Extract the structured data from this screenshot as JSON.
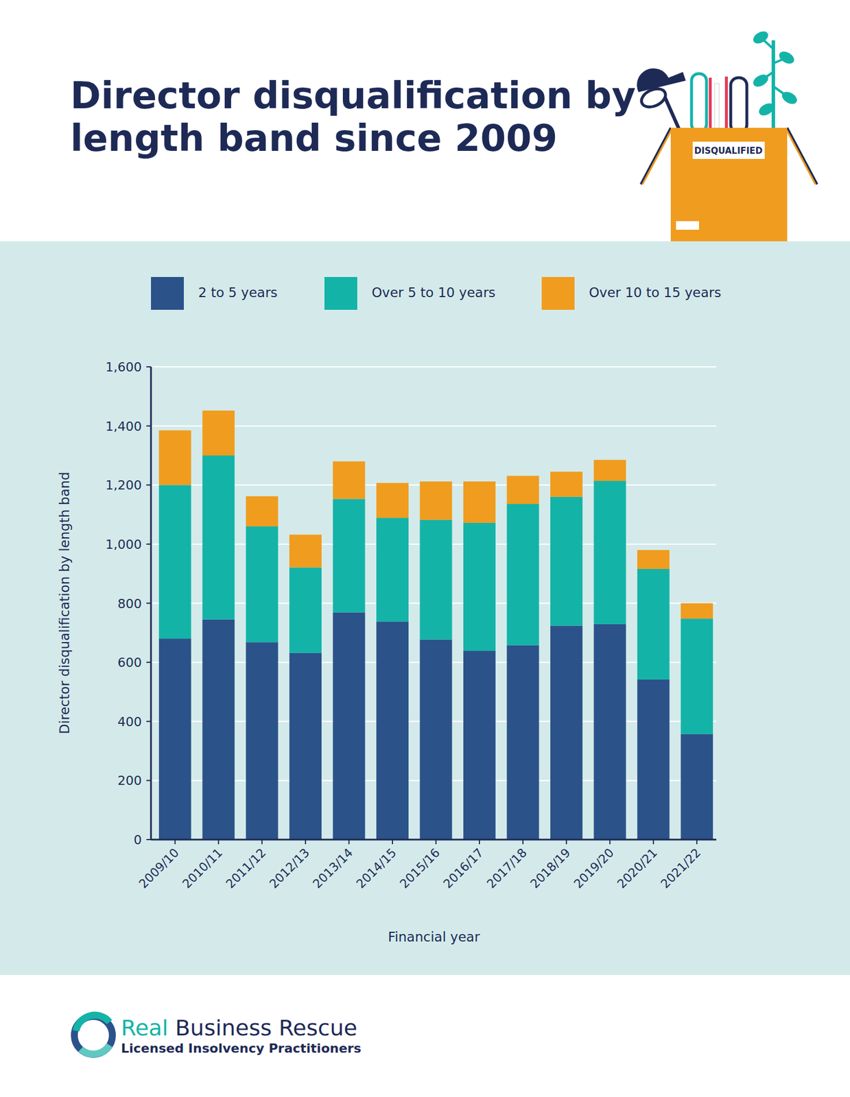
{
  "chart_data": {
    "type": "bar",
    "stacked": true,
    "grid": true,
    "title": "Director disqualification by length band since 2009",
    "illustration_label": "DISQUALIFIED",
    "x_label": "Financial year",
    "y_label": "Director disqualification by length band",
    "categories": [
      "2009/10",
      "2010/11",
      "2011/12",
      "2012/13",
      "2013/14",
      "2014/15",
      "2015/16",
      "2016/17",
      "2017/18",
      "2018/19",
      "2019/20",
      "2020/21",
      "2021/22"
    ],
    "series": [
      {
        "name": "2 to 5 years",
        "color": "#2b5289",
        "values": [
          680,
          745,
          668,
          632,
          769,
          738,
          677,
          639,
          658,
          724,
          729,
          542,
          357
        ]
      },
      {
        "name": "Over 5 to 10 years",
        "color": "#14b3a8",
        "values": [
          520,
          555,
          392,
          289,
          384,
          351,
          405,
          433,
          478,
          436,
          485,
          374,
          391
        ]
      },
      {
        "name": "Over 10 to 15 years",
        "color": "#f09c1e",
        "values": [
          185,
          152,
          102,
          111,
          127,
          118,
          130,
          140,
          95,
          85,
          71,
          64,
          52
        ]
      }
    ],
    "ylim": [
      0,
      1600
    ],
    "yticks": [
      0,
      200,
      400,
      600,
      800,
      {
        "value": 1000,
        "label": "1,000"
      },
      {
        "value": 1200,
        "label": "1,200"
      },
      {
        "value": 1400,
        "label": "1,400"
      },
      {
        "value": 1600,
        "label": "1,600"
      }
    ],
    "legend": "top",
    "brand": {
      "name": "Real Business Rescue",
      "tagline": "Licensed Insolvency Practitioners"
    }
  }
}
